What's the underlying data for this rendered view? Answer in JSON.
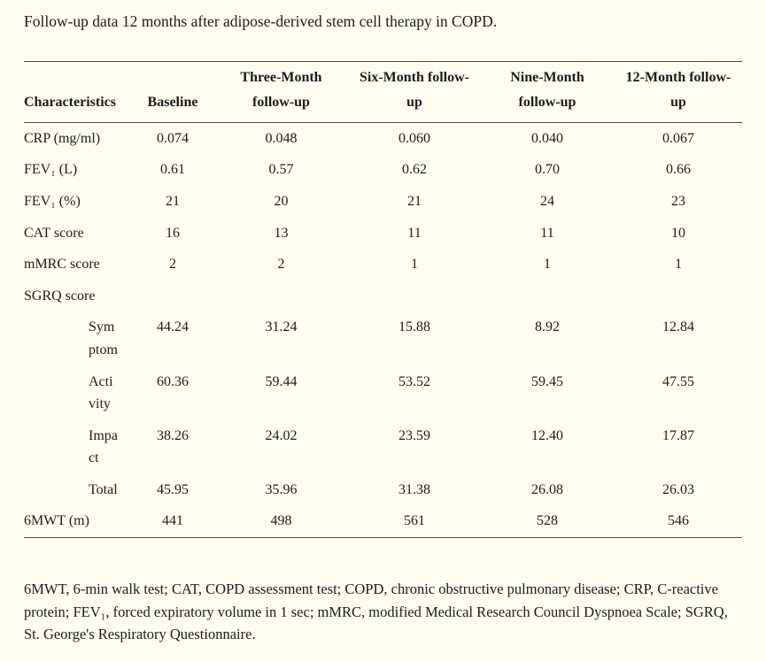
{
  "title": "Follow-up data 12 months after adipose-derived stem cell therapy in COPD.",
  "colors": {
    "background": "#fffef0",
    "text": "#1b1b1b",
    "rule": "#4a4a4a"
  },
  "table": {
    "columns": [
      "Characteristics",
      "Baseline",
      "Three-Month\nfollow-up",
      "Six-Month follow-\nup",
      "Nine-Month\nfollow-up",
      "12-Month follow-\nup"
    ],
    "rows": [
      {
        "label": "CRP (mg/ml)",
        "indent": false,
        "values": [
          "0.074",
          "0.048",
          "0.060",
          "0.040",
          "0.067"
        ]
      },
      {
        "label": "FEV₁ (L)",
        "indent": false,
        "values": [
          "0.61",
          "0.57",
          "0.62",
          "0.70",
          "0.66"
        ]
      },
      {
        "label": "FEV₁ (%)",
        "indent": false,
        "values": [
          "21",
          "20",
          "21",
          "24",
          "23"
        ]
      },
      {
        "label": "CAT score",
        "indent": false,
        "values": [
          "16",
          "13",
          "11",
          "11",
          "10"
        ]
      },
      {
        "label": "mMRC score",
        "indent": false,
        "values": [
          "2",
          "2",
          "1",
          "1",
          "1"
        ]
      },
      {
        "label": "SGRQ score",
        "indent": false,
        "values": [
          "",
          "",
          "",
          "",
          ""
        ]
      },
      {
        "label": "Sym\nptom",
        "indent": true,
        "values": [
          "44.24",
          "31.24",
          "15.88",
          "8.92",
          "12.84"
        ]
      },
      {
        "label": "Acti\nvity",
        "indent": true,
        "values": [
          "60.36",
          "59.44",
          "53.52",
          "59.45",
          "47.55"
        ]
      },
      {
        "label": "Impa\nct",
        "indent": true,
        "values": [
          "38.26",
          "24.02",
          "23.59",
          "12.40",
          "17.87"
        ]
      },
      {
        "label": "Total",
        "indent": true,
        "values": [
          "45.95",
          "35.96",
          "31.38",
          "26.08",
          "26.03"
        ]
      },
      {
        "label": "6MWT (m)",
        "indent": false,
        "values": [
          "441",
          "498",
          "561",
          "528",
          "546"
        ]
      }
    ]
  },
  "footnote": "6MWT, 6-min walk test; CAT, COPD assessment test; COPD, chronic obstructive pulmonary disease; CRP, C-reactive protein; FEV₁, forced expiratory volume in 1 sec; mMRC, modified Medical Research Council Dyspnoea Scale; SGRQ, St. George's Respiratory Questionnaire."
}
